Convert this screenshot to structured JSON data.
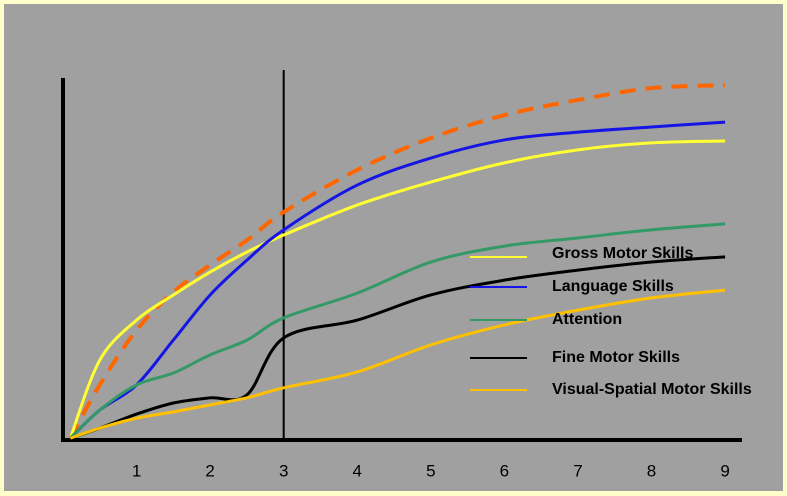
{
  "chart_data": {
    "type": "line",
    "x": [
      0.1,
      0.5,
      1,
      1.5,
      2,
      2.5,
      3,
      4,
      5,
      6,
      7,
      8,
      9
    ],
    "xlim": [
      0,
      9.23
    ],
    "xticks": [
      1,
      2,
      3,
      4,
      5,
      6,
      7,
      8,
      9
    ],
    "ylim": [
      0,
      100
    ],
    "vline": 3,
    "series": [
      {
        "color": "#ff6600",
        "dashed": true,
        "values": [
          0.5,
          14.9,
          29.7,
          40,
          47.3,
          54,
          61.6,
          73,
          81.6,
          87.8,
          91.9,
          95.1,
          95.9
        ]
      },
      {
        "name": "Gross Motor Skills",
        "color": "#ffff33",
        "values": [
          0.5,
          21.6,
          32.4,
          39.2,
          45.4,
          50.8,
          55.4,
          63.5,
          69.7,
          74.9,
          78.4,
          80.3,
          80.8
        ]
      },
      {
        "name": "Language Skills",
        "color": "#1515e6",
        "values": [
          0.5,
          8.1,
          14.9,
          27,
          39.2,
          48.6,
          56.8,
          68.9,
          76.2,
          81.1,
          83.2,
          84.6,
          85.9
        ]
      },
      {
        "name": "Attention",
        "color": "#339966",
        "values": [
          0.5,
          8.1,
          14.9,
          18.1,
          23,
          27,
          33,
          39.7,
          48.1,
          52.4,
          54.6,
          56.8,
          58.4
        ]
      },
      {
        "name": "Fine Motor Skills",
        "color": "#000000",
        "values": [
          0.5,
          3.2,
          7,
          10,
          11.4,
          12.2,
          27.6,
          32.4,
          39.2,
          43.2,
          45.9,
          48.1,
          49.5
        ]
      },
      {
        "name": "Visual-Spatial Motor Skills",
        "color": "#ffc000",
        "values": [
          0.5,
          3.2,
          5.9,
          7.6,
          9.5,
          11.4,
          14.1,
          18.4,
          25.7,
          31.1,
          35.1,
          38.4,
          40.5
        ]
      }
    ]
  }
}
